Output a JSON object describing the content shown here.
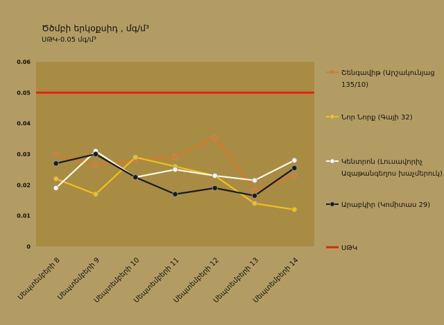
{
  "chart_data": {
    "type": "line",
    "title": "Ծծմբի երկօքսիդ , մգ/մ³",
    "subtitle": "ՍԹԿ-0.05 մգ/մ³",
    "categories": [
      "Սեպտեմբերի 8",
      "Սեպտեմբերի 9",
      "Սեպտեմբերի 10",
      "Սեպտեմբերի 11",
      "Սեպտեմբերի 12",
      "Սեպտեմբերի 13",
      "Սեպտեմբերի 14"
    ],
    "ylim": [
      0,
      0.06
    ],
    "yticks": [
      "0",
      "0.01",
      "0.02",
      "0.03",
      "0.04",
      "0.05",
      "0.06"
    ],
    "grid": false,
    "legend_position": "right",
    "series": [
      {
        "name": "Շենգավիթ (Արշակունյաց 135/10)",
        "color": "#d97a23",
        "values": [
          0.03,
          0.0265,
          0.028,
          0.029,
          0.0355,
          0.018,
          0.023
        ]
      },
      {
        "name": "Նոր Նորք (Գայի 32)",
        "color": "#f2c018",
        "values": [
          0.022,
          0.017,
          0.029,
          0.026,
          0.023,
          0.014,
          0.012
        ]
      },
      {
        "name": "Կենտրոն (Լուսավորիչ Ազաթանգեղոս խաչմերուկ)",
        "color": "#fff7e6",
        "values": [
          0.019,
          0.031,
          0.0225,
          0.025,
          0.023,
          0.0215,
          0.028
        ]
      },
      {
        "name": "Արաբկիր (Կոմիտաս 29)",
        "color": "#1a1a1a",
        "values": [
          0.027,
          0.03,
          0.0225,
          0.017,
          0.019,
          0.0165,
          0.0255
        ]
      }
    ],
    "threshold": {
      "name": "ՍԹԿ",
      "value": 0.05,
      "color": "#e0260f"
    }
  }
}
